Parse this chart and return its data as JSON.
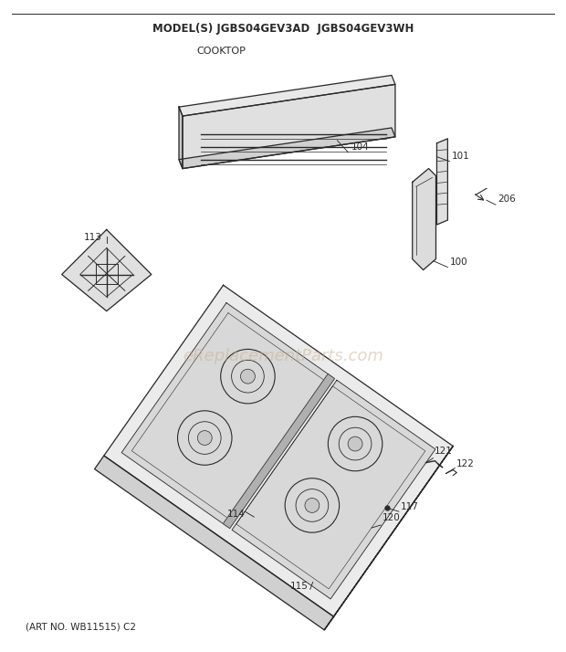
{
  "title": "MODEL(S) JGBS04GEV3AD  JGBS04GEV3WH",
  "subtitle": "COOKTOP",
  "footer": "(ART NO. WB11515) C2",
  "watermark": "eReplacementParts.com",
  "bg_color": "#ffffff",
  "line_color": "#2a2a2a",
  "fill_light": "#eeeeee",
  "fill_mid": "#d8d8d8",
  "fill_dark": "#b8b8b8"
}
